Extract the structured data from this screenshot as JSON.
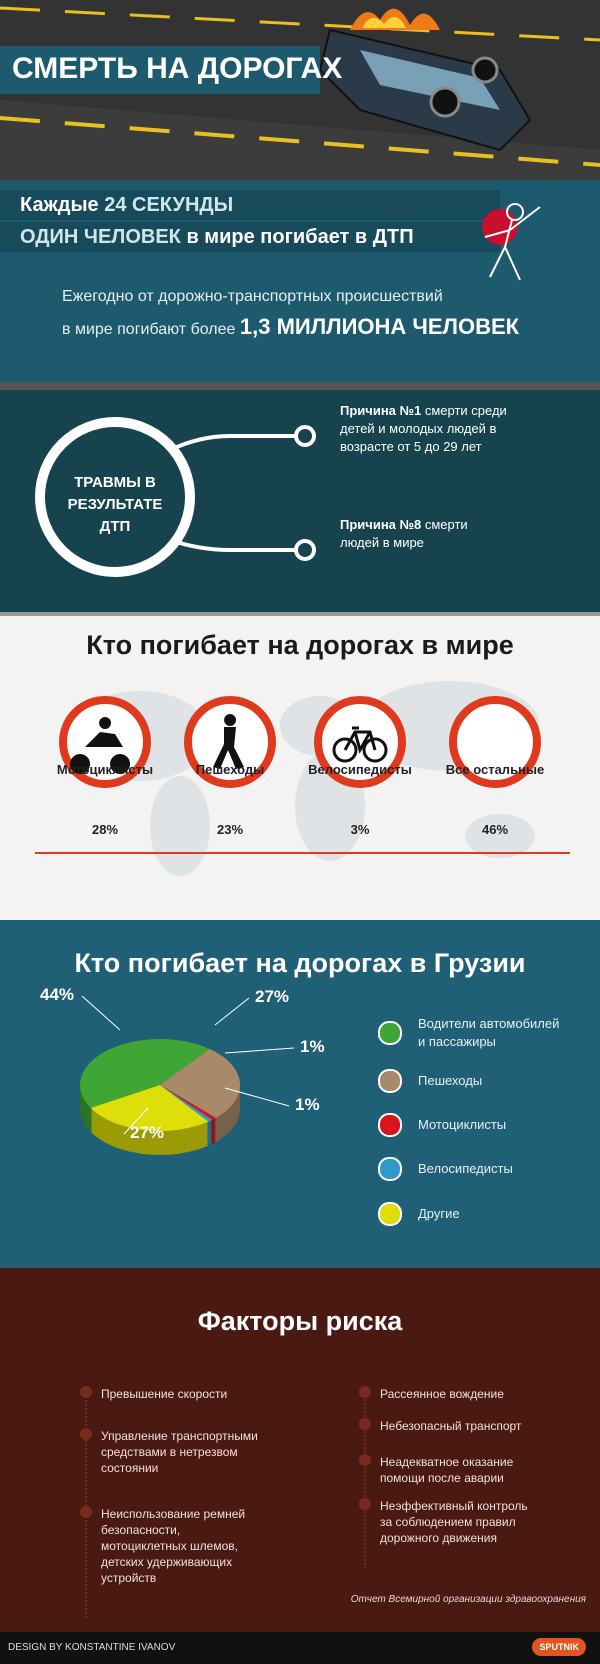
{
  "header": {
    "title": "СМЕРТЬ НА ДОРОГАХ"
  },
  "stat": {
    "line1_start": "Каждые",
    "line1_highlight": "24 СЕКУНДЫ",
    "line2_highlight": "ОДИН ЧЕЛОВЕК",
    "line2_end": "в мире погибает в ДТП",
    "annual_line1": "Ежегодно от дорожно-транспортных происшествий",
    "annual_line2": "в мире погибают более",
    "annual_highlight": "1,3 МИЛЛИОНА ЧЕЛОВЕК"
  },
  "injuries": {
    "circle_label": "ТРАВМЫ В РЕЗУЛЬТАТЕ ДТП",
    "causes": [
      {
        "rank": "Причина №1",
        "text": "смерти среди детей и молодых людей в возрасте от 5 до 29 лет"
      },
      {
        "rank": "Причина №8",
        "text": "смерти людей в мире"
      }
    ]
  },
  "world": {
    "title": "Кто погибает на дорогах в мире",
    "items": [
      {
        "name": "Мотоциклисты",
        "share": "28%"
      },
      {
        "name": "Пешеходы",
        "share": "23%"
      },
      {
        "name": "Велосипедисты",
        "share": "3%"
      },
      {
        "name": "Все остальные",
        "share": "46%"
      }
    ]
  },
  "georgia": {
    "chart_data": {
      "type": "pie",
      "title": "Кто погибает на дорогах в Грузии",
      "series": [
        {
          "name": "Водители автомобилей и пассажиры",
          "color": "#3fa535"
        },
        {
          "name": "Пешеходы",
          "color": "#a88a6a"
        },
        {
          "name": "Мотоциклисты",
          "color": "#d9141b"
        },
        {
          "name": "Велосипедисты",
          "color": "#2f9ac9"
        },
        {
          "name": "Другие",
          "color": "#dede0a"
        }
      ],
      "values": [
        44,
        27,
        1,
        1,
        27
      ],
      "value_labels": [
        "44%",
        "27%",
        "1%",
        "1%",
        "27%"
      ]
    }
  },
  "risks": {
    "title": "Факторы риска",
    "left": [
      "Превышение скорости",
      "Управление транспортными средствами в нетрезвом состоянии",
      "Неиспользование ремней безопасности, мотоциклетных шлемов, детских удерживающих устройств"
    ],
    "right": [
      "Рассеянное вождение",
      "Небезопасный транспорт",
      "Неадекватное оказание помощи после аварии",
      "Неэффективный контроль за соблюдением правил дорожного движения"
    ],
    "source": "Отчет Всемирной организации здравоохранения"
  },
  "footer": {
    "credit": "DESIGN BY KONSTANTINE IVANOV",
    "logo": "SPUTNIK"
  }
}
